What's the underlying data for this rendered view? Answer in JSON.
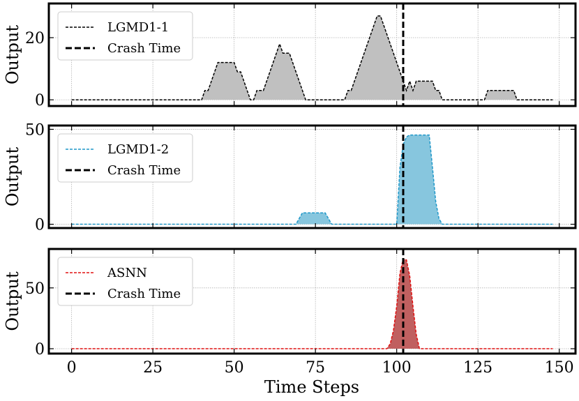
{
  "chart_data": [
    {
      "type": "area",
      "xlabel": "",
      "ylabel": "Output",
      "xlim": [
        -7,
        155
      ],
      "ylim": [
        -2,
        31
      ],
      "x_ticks": [
        0,
        25,
        50,
        75,
        100,
        125,
        150
      ],
      "y_ticks": [
        0,
        20
      ],
      "grid": true,
      "legend_position": "top-left",
      "series": [
        {
          "name": "LGMD1-1",
          "color": "#000000",
          "fill": "#c0c0c0",
          "line_style": "dashed",
          "x": [
            0,
            40,
            41,
            42,
            44,
            45,
            48,
            49,
            50,
            51,
            52,
            53,
            54,
            55,
            56,
            57,
            58,
            59,
            60,
            61,
            62,
            63,
            64,
            65,
            66,
            67,
            68,
            69,
            70,
            71,
            72,
            73,
            74,
            75,
            76,
            77,
            78,
            79,
            80,
            81,
            82,
            83,
            84,
            85,
            86,
            87,
            88,
            89,
            90,
            91,
            92,
            93,
            94,
            95,
            96,
            97,
            98,
            99,
            100,
            101,
            102,
            103,
            104,
            105,
            106,
            107,
            108,
            109,
            110,
            111,
            112,
            113,
            114,
            115,
            116,
            117,
            118,
            119,
            120,
            121,
            122,
            123,
            124,
            125,
            126,
            127,
            128,
            129,
            130,
            131,
            132,
            133,
            134,
            135,
            136,
            137,
            138,
            148
          ],
          "y": [
            0,
            0,
            3,
            3,
            9,
            12,
            12,
            12,
            12,
            9,
            9,
            6,
            3,
            0,
            0,
            3,
            3,
            3,
            6,
            9,
            12,
            15,
            18,
            15,
            15,
            15,
            12,
            9,
            6,
            3,
            0,
            0,
            0,
            0,
            0,
            0,
            0,
            0,
            0,
            0,
            0,
            0,
            0,
            3,
            3,
            6,
            9,
            12,
            15,
            18,
            21,
            24,
            27,
            27,
            24,
            21,
            18,
            15,
            12,
            9,
            6,
            3,
            6,
            3,
            6,
            6,
            6,
            6,
            6,
            6,
            3,
            3,
            0,
            0,
            0,
            0,
            0,
            0,
            0,
            0,
            0,
            0,
            0,
            0,
            0,
            0,
            3,
            3,
            3,
            3,
            3,
            3,
            3,
            3,
            3,
            0,
            0,
            0
          ]
        },
        {
          "name": "Crash Time",
          "color": "#000000",
          "line_style": "dashed-bold",
          "x_value": 102
        }
      ]
    },
    {
      "type": "area",
      "xlabel": "",
      "ylabel": "Output",
      "xlim": [
        -7,
        155
      ],
      "ylim": [
        -2,
        52
      ],
      "x_ticks": [
        0,
        25,
        50,
        75,
        100,
        125,
        150
      ],
      "y_ticks": [
        0,
        50
      ],
      "grid": true,
      "legend_position": "top-left",
      "series": [
        {
          "name": "LGMD1-2",
          "color": "#1f97c8",
          "fill": "#87c6de",
          "line_style": "dashed",
          "x": [
            0,
            69,
            70,
            71,
            72,
            73,
            74,
            75,
            76,
            77,
            78,
            79,
            80,
            81,
            100,
            101,
            102,
            103,
            104,
            105,
            106,
            107,
            108,
            109,
            110,
            111,
            112,
            113,
            114,
            148
          ],
          "y": [
            0,
            0,
            3,
            6,
            6,
            6,
            6,
            6,
            6,
            6,
            6,
            3,
            0,
            0,
            0,
            30,
            42,
            46,
            47,
            47,
            47,
            47,
            47,
            47,
            47,
            30,
            12,
            3,
            0,
            0
          ]
        },
        {
          "name": "Crash Time",
          "color": "#000000",
          "line_style": "dashed-bold",
          "x_value": 102
        }
      ]
    },
    {
      "type": "area",
      "xlabel": "Time Steps",
      "ylabel": "Output",
      "xlim": [
        -7,
        155
      ],
      "ylim": [
        -4,
        82
      ],
      "x_ticks": [
        0,
        25,
        50,
        75,
        100,
        125,
        150
      ],
      "y_ticks": [
        0,
        50
      ],
      "grid": true,
      "legend_position": "top-left",
      "series": [
        {
          "name": "ASNN",
          "color": "#e01010",
          "fill": "#c06060",
          "line_style": "dashed",
          "x": [
            0,
            97,
            98,
            99,
            100,
            101,
            102,
            103,
            104,
            105,
            106,
            107,
            148
          ],
          "y": [
            0,
            0,
            4,
            15,
            35,
            62,
            74,
            73,
            60,
            35,
            12,
            0,
            0
          ]
        },
        {
          "name": "Crash Time",
          "color": "#000000",
          "line_style": "dashed-bold",
          "x_value": 102
        }
      ]
    }
  ]
}
